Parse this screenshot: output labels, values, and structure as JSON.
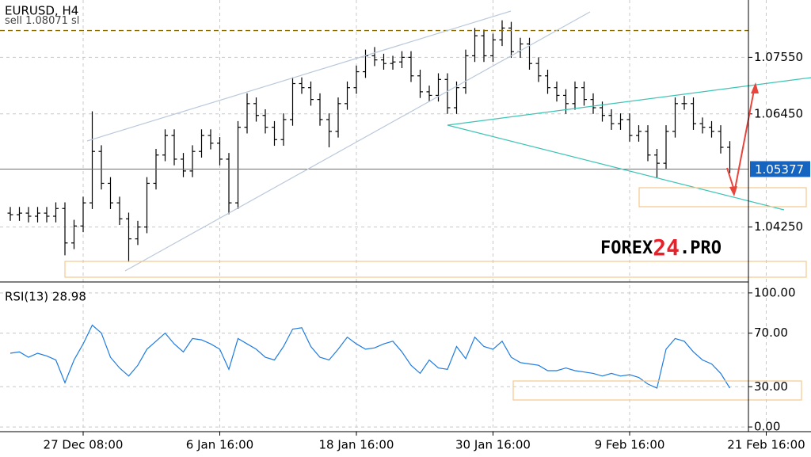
{
  "chart_data": [
    {
      "type": "ohlc",
      "title": "EURUSD, H4",
      "annotation": "sell 1.08071 sl",
      "annotation_value": 1.08071,
      "watermark": [
        "FOREX",
        "24",
        ".PRO"
      ],
      "last_price": 1.05377,
      "grid": true,
      "color": "#000000",
      "categories": [
        null,
        null,
        null,
        null,
        null,
        null,
        null,
        null,
        "27 Dec 08:00",
        null,
        null,
        null,
        null,
        null,
        null,
        null,
        null,
        null,
        null,
        null,
        null,
        null,
        null,
        "6 Jan 16:00",
        null,
        null,
        null,
        null,
        null,
        null,
        null,
        null,
        null,
        null,
        null,
        null,
        null,
        null,
        "18 Jan 16:00",
        null,
        null,
        null,
        null,
        null,
        null,
        null,
        null,
        null,
        null,
        null,
        null,
        null,
        null,
        "30 Jan 16:00",
        null,
        null,
        null,
        null,
        null,
        null,
        null,
        null,
        null,
        null,
        null,
        null,
        null,
        null,
        "9 Feb 16:00",
        null,
        null,
        null,
        null,
        null,
        null,
        null,
        null,
        null,
        null,
        null,
        null,
        null,
        null,
        "21 Feb 16:00"
      ],
      "open": [
        1.0452,
        1.0449,
        1.0452,
        1.0446,
        1.0452,
        1.0446,
        1.0461,
        1.0394,
        1.0427,
        1.0472,
        1.0572,
        1.051,
        1.0472,
        1.0441,
        1.0402,
        1.0425,
        1.051,
        1.0565,
        1.0603,
        1.0557,
        1.0534,
        1.0572,
        1.0603,
        1.0588,
        1.0557,
        1.0472,
        1.0619,
        1.0665,
        1.0642,
        1.0619,
        1.0595,
        1.0634,
        1.0704,
        1.0696,
        1.0673,
        1.0634,
        1.0611,
        1.0665,
        1.0696,
        1.0727,
        1.0758,
        1.075,
        1.0743,
        1.0746,
        1.0755,
        1.0719,
        1.0688,
        1.0681,
        1.0712,
        1.0657,
        1.0696,
        1.0758,
        1.0797,
        1.0758,
        1.0789,
        1.0812,
        1.0766,
        1.0781,
        1.0743,
        1.0719,
        1.0696,
        1.0681,
        1.0665,
        1.0696,
        1.0673,
        1.0657,
        1.0642,
        1.0626,
        1.0634,
        1.0603,
        1.0611,
        1.0565,
        1.0549,
        1.0611,
        1.0665,
        1.0665,
        1.0626,
        1.0619,
        1.0611,
        1.058,
        null,
        null,
        null,
        null
      ],
      "high": [
        1.0464,
        1.0464,
        1.0464,
        1.0464,
        1.0464,
        1.0473,
        1.0473,
        1.0439,
        1.0484,
        1.065,
        1.0584,
        1.0522,
        1.0484,
        1.0453,
        1.0437,
        1.0522,
        1.0577,
        1.0615,
        1.0615,
        1.0569,
        1.0584,
        1.0615,
        1.0615,
        1.06,
        1.0569,
        1.0631,
        1.0685,
        1.0677,
        1.0654,
        1.0631,
        1.0646,
        1.0716,
        1.0716,
        1.0708,
        1.0685,
        1.0646,
        1.0677,
        1.0708,
        1.0739,
        1.077,
        1.0775,
        1.0762,
        1.0758,
        1.0767,
        1.0767,
        1.0731,
        1.07,
        1.0724,
        1.0724,
        1.0708,
        1.077,
        1.0812,
        1.0809,
        1.0801,
        1.0827,
        1.0824,
        1.0793,
        1.0793,
        1.0755,
        1.0731,
        1.0708,
        1.0693,
        1.0708,
        1.0708,
        1.0685,
        1.0669,
        1.0654,
        1.0646,
        1.0646,
        1.0623,
        1.0623,
        1.0577,
        1.0623,
        1.0677,
        1.068,
        1.0677,
        1.0638,
        1.0631,
        1.0623,
        1.0592,
        null,
        null,
        null,
        null
      ],
      "low": [
        1.0437,
        1.0437,
        1.0434,
        1.0434,
        1.0434,
        1.0434,
        1.037,
        1.0382,
        1.0415,
        1.046,
        1.0498,
        1.046,
        1.0429,
        1.0357,
        1.039,
        1.0413,
        1.0498,
        1.0553,
        1.0545,
        1.0522,
        1.0522,
        1.056,
        1.0576,
        1.0545,
        1.045,
        1.046,
        1.0607,
        1.063,
        1.0607,
        1.0583,
        1.0583,
        1.0622,
        1.0684,
        1.0661,
        1.0622,
        1.058,
        1.0599,
        1.0653,
        1.0684,
        1.0715,
        1.0738,
        1.0731,
        1.0731,
        1.0734,
        1.0707,
        1.0676,
        1.0669,
        1.0669,
        1.0645,
        1.0645,
        1.0684,
        1.0746,
        1.0746,
        1.0746,
        1.0777,
        1.0754,
        1.0754,
        1.0731,
        1.0707,
        1.0684,
        1.0669,
        1.0645,
        1.0653,
        1.0661,
        1.0645,
        1.063,
        1.0614,
        1.0614,
        1.0591,
        1.0591,
        1.0553,
        1.052,
        1.0537,
        1.0599,
        1.0653,
        1.0614,
        1.0607,
        1.0599,
        1.0568,
        1.053,
        null,
        null,
        null,
        null
      ],
      "close": [
        1.0449,
        1.0452,
        1.0446,
        1.0452,
        1.0446,
        1.0461,
        1.0394,
        1.0427,
        1.0472,
        1.0572,
        1.051,
        1.0472,
        1.0441,
        1.0402,
        1.0425,
        1.051,
        1.0565,
        1.0603,
        1.0557,
        1.0534,
        1.0572,
        1.0603,
        1.0588,
        1.0557,
        1.0472,
        1.0619,
        1.0665,
        1.0642,
        1.0619,
        1.0595,
        1.0634,
        1.0704,
        1.0696,
        1.0673,
        1.0634,
        1.0611,
        1.0665,
        1.0696,
        1.0727,
        1.0758,
        1.075,
        1.0743,
        1.0746,
        1.0755,
        1.0719,
        1.0688,
        1.0681,
        1.0712,
        1.0657,
        1.0696,
        1.0758,
        1.0797,
        1.0758,
        1.0789,
        1.0812,
        1.0766,
        1.0781,
        1.0743,
        1.0719,
        1.0696,
        1.0681,
        1.0665,
        1.0696,
        1.0673,
        1.0657,
        1.0642,
        1.0626,
        1.0634,
        1.0603,
        1.0611,
        1.0565,
        1.0549,
        1.0611,
        1.0665,
        1.0665,
        1.0626,
        1.0619,
        1.0611,
        1.058,
        1.05377,
        null,
        null,
        null,
        null
      ],
      "ylim": [
        1.03197,
        1.08665
      ],
      "yticks": [
        {
          "value": 1.0755,
          "label": "1.07550"
        },
        {
          "value": 1.0645,
          "label": "1.06450"
        },
        {
          "value": 1.0425,
          "label": "1.04250"
        }
      ]
    },
    {
      "type": "line",
      "title": "RSI(13) 28.98",
      "color": "#1e7be0",
      "grid": true,
      "values": [
        55,
        56,
        52,
        55,
        53,
        50,
        33,
        50,
        62,
        76,
        70,
        52,
        44,
        38,
        46,
        58,
        64,
        70,
        62,
        56,
        66,
        65,
        62,
        58,
        43,
        66,
        62,
        58,
        52,
        50,
        60,
        73,
        74,
        60,
        52,
        50,
        58,
        67,
        62,
        58,
        59,
        62,
        64,
        56,
        46,
        40,
        50,
        44,
        43,
        60,
        51,
        67,
        60,
        58,
        64,
        52,
        48,
        47,
        46,
        42,
        42,
        44,
        42,
        41,
        40,
        38,
        40,
        38,
        39,
        37,
        32,
        29,
        58,
        66,
        64,
        56,
        50,
        47,
        40,
        28.98
      ],
      "ylim": [
        -3.5,
        107
      ],
      "yticks": [
        {
          "value": 100,
          "label": "100.00"
        },
        {
          "value": 70,
          "label": "70.00"
        },
        {
          "value": 30,
          "label": "30.00"
        },
        {
          "value": 0,
          "label": "0.00"
        }
      ]
    }
  ]
}
